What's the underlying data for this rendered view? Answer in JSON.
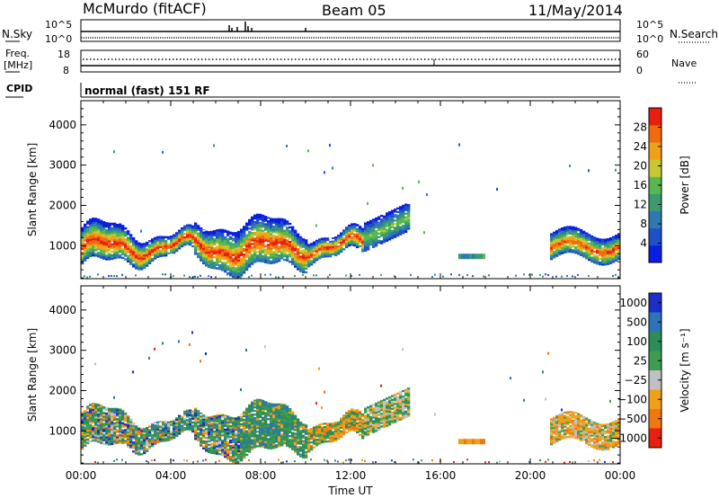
{
  "header": {
    "station": "McMurdo (fitACF)",
    "beam": "Beam 05",
    "date": "11/May/2014"
  },
  "top_panels": {
    "nsky_label": "N.Sky",
    "nsearch_label": "N.Search",
    "nsky_ticks": [
      "10^5",
      "10^0"
    ],
    "nsearch_ticks": [
      "10^5",
      "10^0"
    ],
    "freq_label": "Freq.",
    "freq_unit": "[MHz]",
    "freq_ticks": [
      "18",
      "8"
    ],
    "nave_label": "Nave",
    "nave_ticks": [
      "60",
      "0"
    ],
    "cpid_label": "CPID",
    "cpid_value": "normal (fast) 151 RF"
  },
  "chart_data": [
    {
      "type": "heatmap",
      "name": "power",
      "ylabel": "Slant Range [km]",
      "xlabel": "Time UT",
      "x_ticks": [
        "00:00",
        "04:00",
        "08:00",
        "12:00",
        "16:00",
        "20:00",
        "00:00"
      ],
      "x_range_hours": [
        0,
        24
      ],
      "y_range_km": [
        180,
        4600
      ],
      "y_ticks": [
        1000,
        2000,
        3000,
        4000
      ],
      "colorbar": {
        "label": "Power [dB]",
        "ticks": [
          4,
          8,
          12,
          16,
          20,
          24,
          28
        ],
        "range": [
          0,
          32
        ],
        "colors": [
          "#0a1ee0",
          "#2050c8",
          "#2e7ab0",
          "#3c9a70",
          "#58b850",
          "#c8c830",
          "#f0a018",
          "#f06a10",
          "#e81e10"
        ]
      },
      "features": [
        {
          "time_start_h": 0.0,
          "time_end_h": 12.5,
          "range_km": [
            500,
            1700
          ],
          "peak_db": 30,
          "description": "strong main echo band"
        },
        {
          "time_start_h": 12.5,
          "time_end_h": 14.6,
          "range_km": [
            900,
            2300
          ],
          "peak_db": 12,
          "description": "rising weaker echoes"
        },
        {
          "time_start_h": 20.8,
          "time_end_h": 24.0,
          "range_km": [
            600,
            1600
          ],
          "peak_db": 28,
          "description": "evening echo band"
        }
      ]
    },
    {
      "type": "heatmap",
      "name": "velocity",
      "ylabel": "Slant Range [km]",
      "xlabel": "Time UT",
      "x_ticks": [
        "00:00",
        "04:00",
        "08:00",
        "12:00",
        "16:00",
        "20:00",
        "00:00"
      ],
      "x_range_hours": [
        0,
        24
      ],
      "y_range_km": [
        180,
        4600
      ],
      "y_ticks": [
        1000,
        2000,
        3000,
        4000
      ],
      "colorbar": {
        "label": "Velocity [m s⁻¹]",
        "ticks": [
          "1000",
          "500",
          "100",
          "25",
          "−25",
          "−100",
          "−500",
          "−1000"
        ],
        "colors": [
          "#1c2ec8",
          "#2e74b4",
          "#2e8c5a",
          "#3c9c50",
          "#c0c0c0",
          "#f0a018",
          "#f07810",
          "#e82010"
        ]
      },
      "features": [
        {
          "time_start_h": 0.0,
          "time_end_h": 7.0,
          "range_km": [
            500,
            1500
          ],
          "dominant": "mixed green / blue / orange"
        },
        {
          "time_start_h": 7.0,
          "time_end_h": 14.6,
          "range_km": [
            500,
            1800
          ],
          "dominant": "green then orange"
        },
        {
          "time_start_h": 20.8,
          "time_end_h": 24.0,
          "range_km": [
            600,
            1500
          ],
          "dominant": "orange"
        }
      ]
    }
  ]
}
